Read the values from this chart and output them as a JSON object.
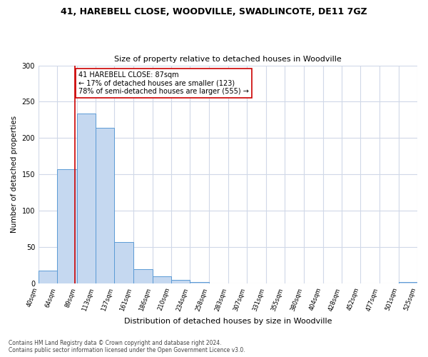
{
  "title": "41, HAREBELL CLOSE, WOODVILLE, SWADLINCOTE, DE11 7GZ",
  "subtitle": "Size of property relative to detached houses in Woodville",
  "xlabel": "Distribution of detached houses by size in Woodville",
  "ylabel": "Number of detached properties",
  "bin_edges": [
    40,
    64,
    89,
    113,
    137,
    161,
    186,
    210,
    234,
    258,
    283,
    307,
    331,
    355,
    380,
    404,
    428,
    452,
    477,
    501,
    525
  ],
  "bar_heights": [
    18,
    157,
    234,
    214,
    57,
    20,
    10,
    5,
    2,
    0,
    0,
    0,
    0,
    0,
    0,
    0,
    0,
    0,
    0,
    2
  ],
  "bar_color": "#c5d8f0",
  "bar_edge_color": "#5b9bd5",
  "vline_color": "#cc0000",
  "vline_x": 87,
  "annotation_text": "41 HAREBELL CLOSE: 87sqm\n← 17% of detached houses are smaller (123)\n78% of semi-detached houses are larger (555) →",
  "annotation_box_color": "#ffffff",
  "annotation_box_edge": "#cc0000",
  "ylim": [
    0,
    300
  ],
  "yticks": [
    0,
    50,
    100,
    150,
    200,
    250,
    300
  ],
  "tick_labels": [
    "40sqm",
    "64sqm",
    "89sqm",
    "113sqm",
    "137sqm",
    "161sqm",
    "186sqm",
    "210sqm",
    "234sqm",
    "258sqm",
    "283sqm",
    "307sqm",
    "331sqm",
    "355sqm",
    "380sqm",
    "404sqm",
    "428sqm",
    "452sqm",
    "477sqm",
    "501sqm",
    "525sqm"
  ],
  "footer_line1": "Contains HM Land Registry data © Crown copyright and database right 2024.",
  "footer_line2": "Contains public sector information licensed under the Open Government Licence v3.0.",
  "bg_color": "#ffffff",
  "grid_color": "#d0d8e8"
}
